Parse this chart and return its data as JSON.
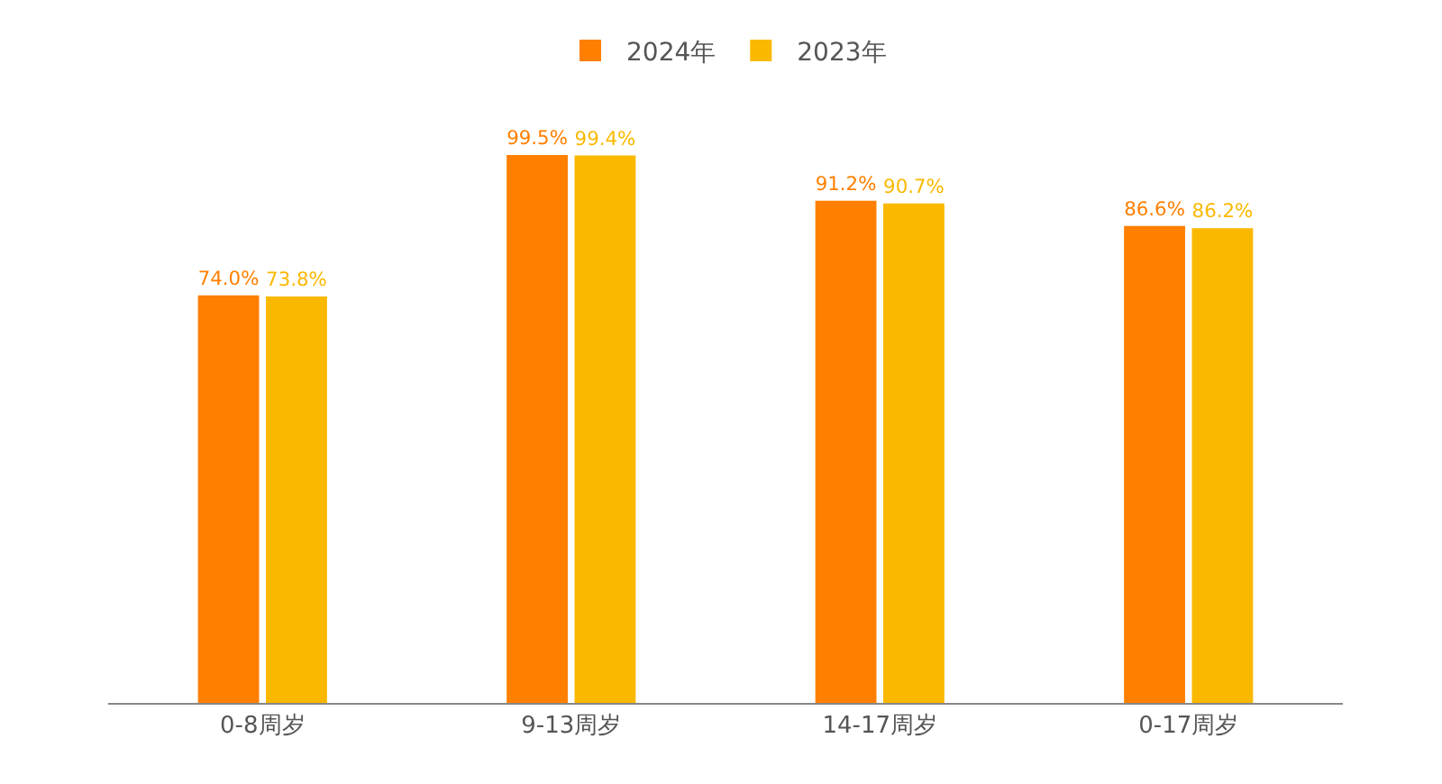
{
  "chart_data": {
    "type": "bar",
    "categories": [
      "0-8周岁",
      "9-13周岁",
      "14-17周岁",
      "0-17周岁"
    ],
    "series": [
      {
        "name": "2024年",
        "color": "#ff7f00",
        "values": [
          74.0,
          99.5,
          91.2,
          86.6
        ],
        "value_labels": [
          "74.0%",
          "99.5%",
          "91.2%",
          "86.6%"
        ]
      },
      {
        "name": "2023年",
        "color": "#fbb800",
        "values": [
          73.8,
          99.4,
          90.7,
          86.2
        ],
        "value_labels": [
          "73.8%",
          "99.4%",
          "90.7%",
          "86.2%"
        ]
      }
    ],
    "tick_labels": "x",
    "legend": "top"
  }
}
